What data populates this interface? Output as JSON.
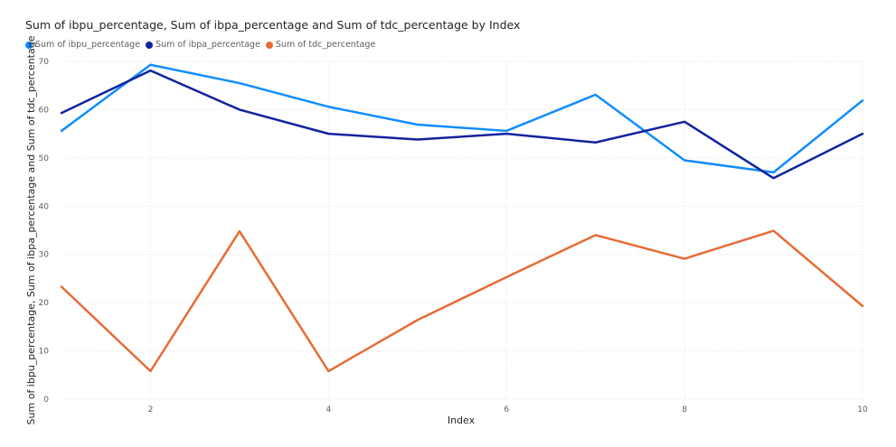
{
  "chart_data": {
    "type": "line",
    "title": "Sum of ibpu_percentage, Sum of ibpa_percentage and Sum of tdc_percentage by Index",
    "xlabel": "Index",
    "ylabel": "Sum of ibpu_percentage, Sum of ibpa_percentage and Sum of tdc_percentage",
    "x": [
      1,
      2,
      3,
      4,
      5,
      6,
      7,
      8,
      9,
      10
    ],
    "xticks": [
      2,
      4,
      6,
      8,
      10
    ],
    "yticks": [
      0,
      10,
      20,
      30,
      40,
      50,
      60,
      70
    ],
    "xlim": [
      1,
      10
    ],
    "ylim": [
      0,
      70
    ],
    "grid": true,
    "legend_position": "top-left",
    "series": [
      {
        "name": "Sum of ibpu_percentage",
        "color": "#118dff",
        "values": [
          55.6,
          69.3,
          65.5,
          60.6,
          56.9,
          55.6,
          63.1,
          49.5,
          47.0,
          61.9
        ]
      },
      {
        "name": "Sum of ibpa_percentage",
        "color": "#12239e",
        "values": [
          59.3,
          68.1,
          60.0,
          55.0,
          53.8,
          55.0,
          53.2,
          57.5,
          45.8,
          55.0
        ]
      },
      {
        "name": "Sum of tdc_percentage",
        "color": "#e66c37",
        "values": [
          23.3,
          5.8,
          34.8,
          5.8,
          16.4,
          25.3,
          34.0,
          29.1,
          34.9,
          19.3
        ]
      }
    ]
  }
}
